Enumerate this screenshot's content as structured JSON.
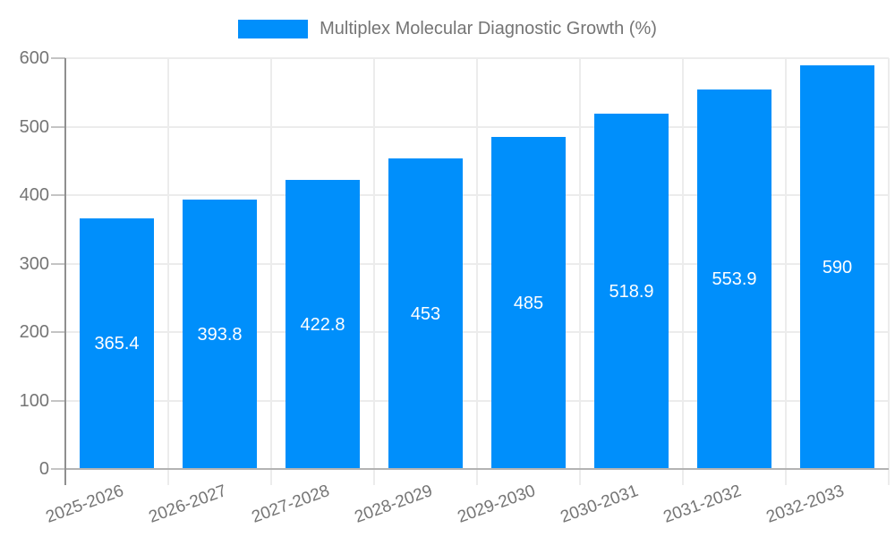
{
  "chart_data": {
    "type": "bar",
    "title": "Multiplex Molecular Diagnostic Growth (%)",
    "legend": {
      "position": "top",
      "items": [
        {
          "label": "Multiplex Molecular Diagnostic Growth (%)",
          "color": "#008FFB"
        }
      ]
    },
    "categories": [
      "2025-2026",
      "2026-2027",
      "2027-2028",
      "2028-2029",
      "2029-2030",
      "2030-2031",
      "2031-2032",
      "2032-2033"
    ],
    "series": [
      {
        "name": "Multiplex Molecular Diagnostic Growth (%)",
        "values": [
          365.4,
          393.8,
          422.8,
          453,
          485,
          518.9,
          553.9,
          590
        ]
      }
    ],
    "data_labels": [
      "365.4",
      "393.8",
      "422.8",
      "453",
      "485",
      "518.9",
      "553.9",
      "590"
    ],
    "xlabel": "",
    "ylabel": "",
    "ylim": [
      0,
      600
    ],
    "yticks": [
      0,
      100,
      200,
      300,
      400,
      500,
      600
    ],
    "grid": true,
    "x_label_rotation_deg": -20,
    "colors": {
      "bar": "#008FFB",
      "data_label": "#FFFFFF",
      "axis_text": "#757575",
      "gridline": "#ECECEC",
      "axis_line": "#8F8F8F",
      "baseline": "#B3B3B3"
    }
  }
}
